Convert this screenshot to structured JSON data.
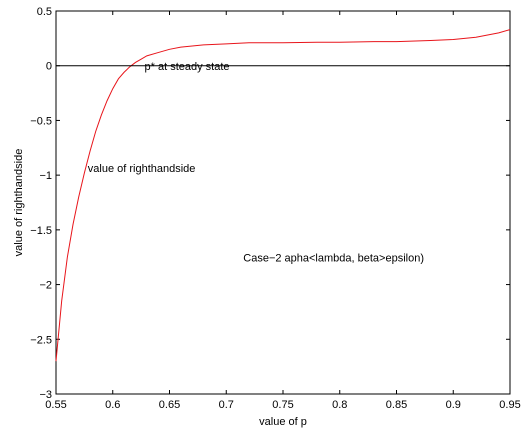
{
  "chart_data": {
    "type": "line",
    "xlabel": "value of p",
    "ylabel": "value of righthandside",
    "xlim": [
      0.55,
      0.95
    ],
    "ylim": [
      -3,
      0.5
    ],
    "xticks": [
      0.55,
      0.6,
      0.65,
      0.7,
      0.75,
      0.8,
      0.85,
      0.9,
      0.95
    ],
    "xtick_labels": [
      "0.55",
      "0.6",
      "0.65",
      "0.7",
      "0.75",
      "0.8",
      "0.85",
      "0.9",
      "0.95"
    ],
    "yticks": [
      0.5,
      0,
      -0.5,
      -1,
      -1.5,
      -2,
      -2.5,
      -3
    ],
    "ytick_labels": [
      "0.5",
      "0",
      "−0.5",
      "−1",
      "−1.5",
      "−2",
      "−2.5",
      "−3"
    ],
    "grid": false,
    "series": [
      {
        "color": "#e8151b",
        "x": [
          0.55,
          0.555,
          0.56,
          0.565,
          0.57,
          0.575,
          0.58,
          0.585,
          0.59,
          0.595,
          0.6,
          0.605,
          0.61,
          0.615,
          0.62,
          0.625,
          0.63,
          0.64,
          0.65,
          0.66,
          0.68,
          0.7,
          0.72,
          0.75,
          0.78,
          0.8,
          0.83,
          0.85,
          0.88,
          0.9,
          0.92,
          0.94,
          0.95
        ],
        "y": [
          -2.7,
          -2.15,
          -1.75,
          -1.45,
          -1.2,
          -0.98,
          -0.78,
          -0.6,
          -0.45,
          -0.32,
          -0.21,
          -0.12,
          -0.06,
          -0.01,
          0.03,
          0.06,
          0.09,
          0.12,
          0.15,
          0.17,
          0.19,
          0.2,
          0.21,
          0.21,
          0.215,
          0.215,
          0.22,
          0.22,
          0.23,
          0.24,
          0.26,
          0.3,
          0.33
        ]
      },
      {
        "color": "#000000",
        "x": [
          0.55,
          0.95
        ],
        "y": [
          0,
          0
        ]
      }
    ],
    "annotations": [
      {
        "text": "p* at steady state",
        "x": 0.628,
        "y": -0.04
      },
      {
        "text": "value of righthandside",
        "x": 0.578,
        "y": -0.97
      },
      {
        "text": "Case−2 apha<lambda, beta>epsilon)",
        "x": 0.715,
        "y": -1.79
      }
    ]
  }
}
